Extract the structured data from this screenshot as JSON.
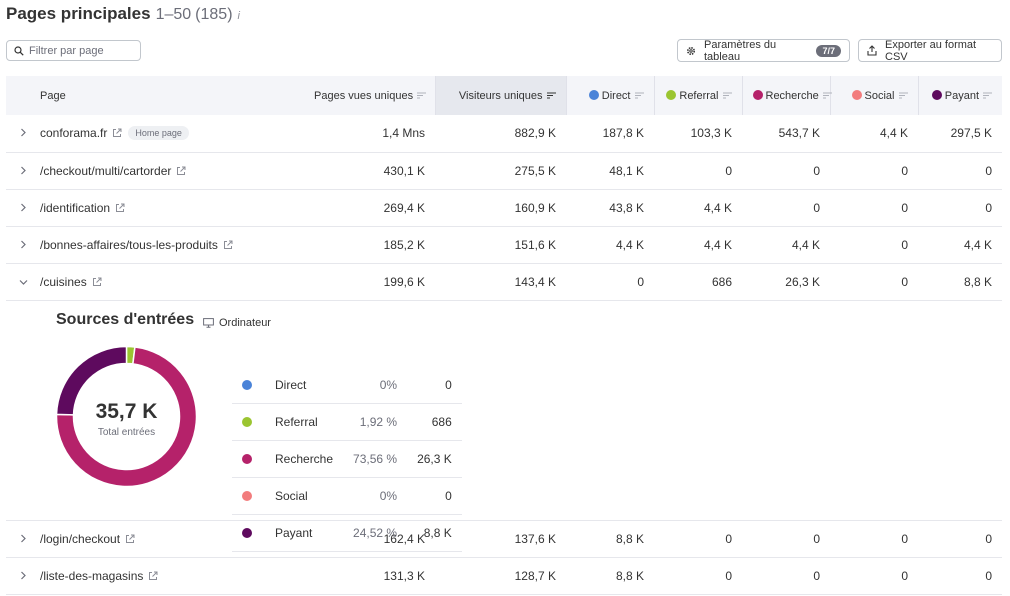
{
  "header": {
    "title": "Pages principales",
    "range": "1–50",
    "total": "(185)",
    "info": "i"
  },
  "search": {
    "placeholder": "Filtrer par page"
  },
  "toolbar": {
    "params_label": "Paramètres du tableau",
    "params_badge": "7/7",
    "export_label": "Exporter au format CSV"
  },
  "colors": {
    "direct": "#4a83d8",
    "referral": "#9bc531",
    "recherche": "#b5226a",
    "social": "#f27c7d",
    "payant": "#5e0a5e"
  },
  "columns": {
    "page": "Page",
    "pages_vues": "Pages vues uniques",
    "visiteurs": "Visiteurs uniques",
    "direct": "Direct",
    "referral": "Referral",
    "recherche": "Recherche",
    "social": "Social",
    "payant": "Payant"
  },
  "rows": [
    {
      "page": "conforama.fr",
      "badge": "Home page",
      "pages_vues": "1,4 Mns",
      "visiteurs": "882,9 K",
      "direct": "187,8 K",
      "referral": "103,3 K",
      "recherche": "543,7 K",
      "social": "4,4 K",
      "payant": "297,5 K"
    },
    {
      "page": "/checkout/multi/cartorder",
      "pages_vues": "430,1 K",
      "visiteurs": "275,5 K",
      "direct": "48,1 K",
      "referral": "0",
      "recherche": "0",
      "social": "0",
      "payant": "0"
    },
    {
      "page": "/identification",
      "pages_vues": "269,4 K",
      "visiteurs": "160,9 K",
      "direct": "43,8 K",
      "referral": "4,4 K",
      "recherche": "0",
      "social": "0",
      "payant": "0"
    },
    {
      "page": "/bonnes-affaires/tous-les-produits",
      "pages_vues": "185,2 K",
      "visiteurs": "151,6 K",
      "direct": "4,4 K",
      "referral": "4,4 K",
      "recherche": "4,4 K",
      "social": "0",
      "payant": "4,4 K"
    },
    {
      "page": "/cuisines",
      "pages_vues": "199,6 K",
      "visiteurs": "143,4 K",
      "direct": "0",
      "referral": "686",
      "recherche": "26,3 K",
      "social": "0",
      "payant": "8,8 K"
    },
    {
      "page": "/login/checkout",
      "pages_vues": "162,4 K",
      "visiteurs": "137,6 K",
      "direct": "8,8 K",
      "referral": "0",
      "recherche": "0",
      "social": "0",
      "payant": "0"
    },
    {
      "page": "/liste-des-magasins",
      "pages_vues": "131,3 K",
      "visiteurs": "128,7 K",
      "direct": "8,8 K",
      "referral": "0",
      "recherche": "0",
      "social": "0",
      "payant": "0"
    }
  ],
  "sources": {
    "title": "Sources d'entrées",
    "device": "Ordinateur",
    "total_value": "35,7 K",
    "total_label": "Total entrées",
    "items": [
      {
        "name": "Direct",
        "pct": "0%",
        "value": "0",
        "share": 0,
        "color": "#4a83d8"
      },
      {
        "name": "Referral",
        "pct": "1,92 %",
        "value": "686",
        "share": 1.92,
        "color": "#9bc531"
      },
      {
        "name": "Recherche",
        "pct": "73,56 %",
        "value": "26,3 K",
        "share": 73.56,
        "color": "#b5226a"
      },
      {
        "name": "Social",
        "pct": "0%",
        "value": "0",
        "share": 0,
        "color": "#f27c7d"
      },
      {
        "name": "Payant",
        "pct": "24,52 %",
        "value": "8,8 K",
        "share": 24.52,
        "color": "#5e0a5e"
      }
    ]
  }
}
